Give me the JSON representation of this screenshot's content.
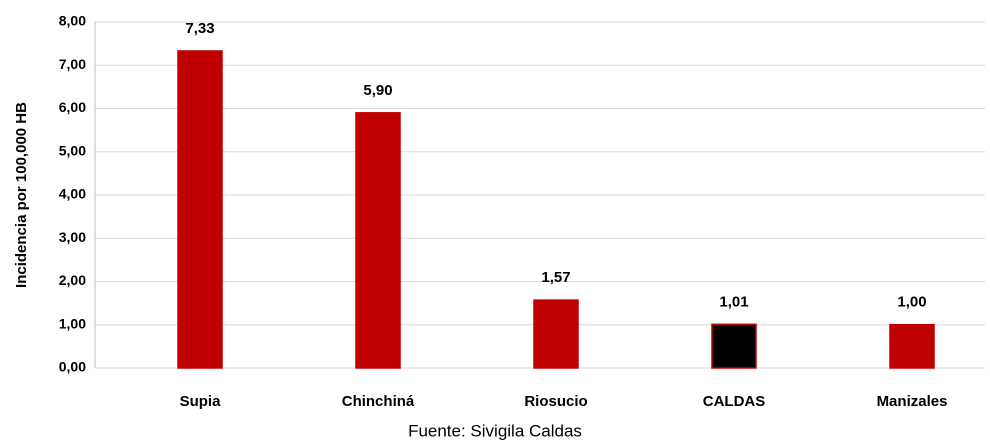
{
  "chart_data": {
    "type": "bar",
    "y_axis_label": "Incidencia por 100,000 HB",
    "note": "Fuente: Sivigila Caldas",
    "categories": [
      "Supia",
      "Chinchiná",
      "Riosucio",
      "CALDAS",
      "Manizales"
    ],
    "values": [
      7.33,
      5.9,
      1.57,
      1.01,
      1.0
    ],
    "value_labels": [
      "7,33",
      "5,90",
      "1,57",
      "1,01",
      "1,00"
    ],
    "colors": [
      "#c00000",
      "#c00000",
      "#c00000",
      "#000000",
      "#c00000"
    ],
    "edge_color": "#c00000",
    "ylim": [
      0,
      8
    ],
    "yticks": [
      {
        "value": 0,
        "label": "0,00"
      },
      {
        "value": 1,
        "label": "1,00"
      },
      {
        "value": 2,
        "label": "2,00"
      },
      {
        "value": 3,
        "label": "3,00"
      },
      {
        "value": 4,
        "label": "4,00"
      },
      {
        "value": 5,
        "label": "5,00"
      },
      {
        "value": 6,
        "label": "6,00"
      },
      {
        "value": 7,
        "label": "7,00"
      },
      {
        "value": 8,
        "label": "8,00"
      }
    ],
    "grid": true
  }
}
